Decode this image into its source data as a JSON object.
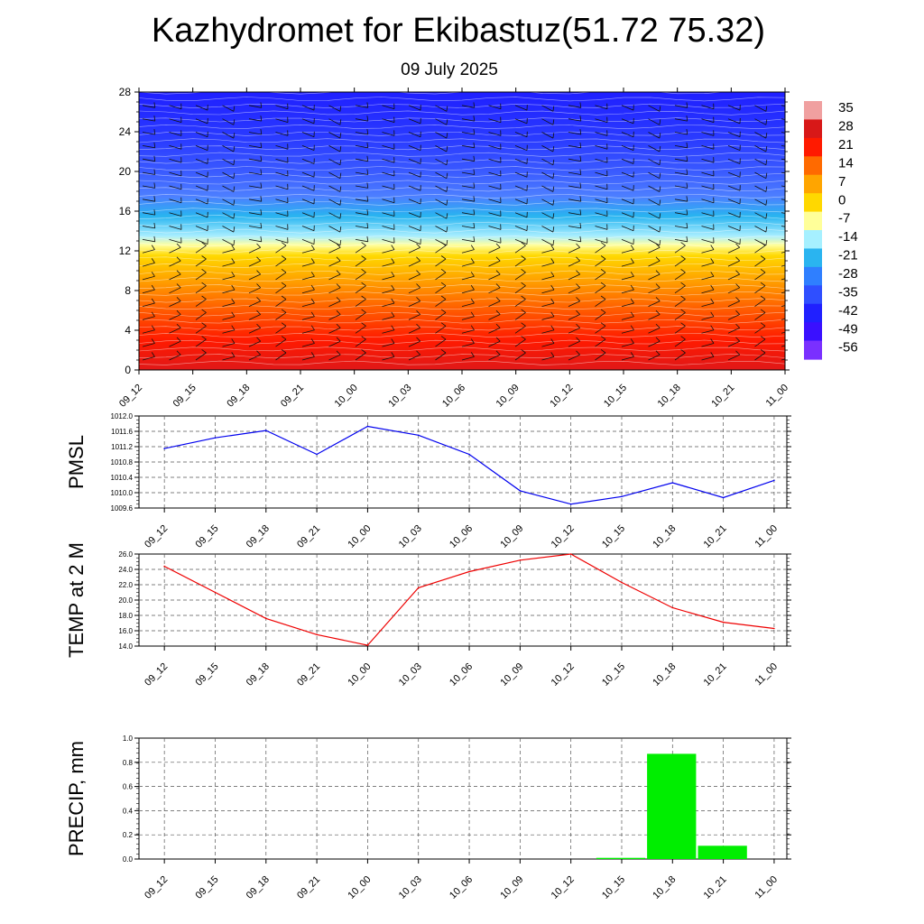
{
  "header": {
    "title": "Kazhydromet for Ekibastuz(51.72 75.32)",
    "date": "09 July 2025"
  },
  "colors": {
    "pmsl_line": "#0000ee",
    "temp_line": "#ee0000",
    "precip_bar": "#00ee00",
    "grid": "#555555"
  },
  "chart_data": [
    {
      "type": "heatmap",
      "title": "",
      "x": [
        "09_12",
        "09_15",
        "09_18",
        "09_21",
        "10_00",
        "10_03",
        "10_06",
        "10_09",
        "10_12",
        "10_15",
        "10_18",
        "10_21",
        "11_00"
      ],
      "ylim": [
        0,
        28
      ],
      "yticks": [
        "0",
        "4",
        "8",
        "12",
        "16",
        "20",
        "24",
        "28"
      ],
      "colorbar": {
        "labels": [
          "35",
          "28",
          "21",
          "14",
          "7",
          "0",
          "-7",
          "-14",
          "-21",
          "-28",
          "-35",
          "-42",
          "-49",
          "-56"
        ],
        "colors": [
          "#f0a0a0",
          "#d81818",
          "#ff1a00",
          "#ff6a00",
          "#ffa500",
          "#ffd800",
          "#ffff99",
          "#a6f0ff",
          "#2ab4f0",
          "#2f7fff",
          "#2f4fff",
          "#2020ff",
          "#3a10ff",
          "#7a30ff"
        ]
      },
      "profile": [
        {
          "h": 0,
          "color": "#e01818"
        },
        {
          "h": 3,
          "color": "#ff1a00"
        },
        {
          "h": 6,
          "color": "#ff5a00"
        },
        {
          "h": 9,
          "color": "#ffa000"
        },
        {
          "h": 11.5,
          "color": "#ffd800"
        },
        {
          "h": 12.6,
          "color": "#ffffa0"
        },
        {
          "h": 13.5,
          "color": "#a8eeff"
        },
        {
          "h": 15.5,
          "color": "#28b4f0"
        },
        {
          "h": 17.5,
          "color": "#4d7fff"
        },
        {
          "h": 20,
          "color": "#3a5aff"
        },
        {
          "h": 23,
          "color": "#2b3dff"
        },
        {
          "h": 28,
          "color": "#1f1fff"
        }
      ]
    },
    {
      "type": "line",
      "ylabel": "PMSL",
      "categories": [
        "09_12",
        "09_15",
        "09_18",
        "09_21",
        "10_00",
        "10_03",
        "10_06",
        "10_09",
        "10_12",
        "10_15",
        "10_18",
        "10_21",
        "11_00"
      ],
      "ylim": [
        1009.6,
        1012.0
      ],
      "yticks": [
        "1009.6",
        "1010.0",
        "1010.4",
        "1010.8",
        "1011.2",
        "1011.6",
        "1012.0"
      ],
      "series": [
        {
          "values": [
            1011.15,
            1011.43,
            1011.62,
            1011.0,
            1011.73,
            1011.5,
            1011.0,
            1010.05,
            1009.7,
            1009.9,
            1010.26,
            1009.87,
            1010.32
          ]
        }
      ],
      "grid": true
    },
    {
      "type": "line",
      "ylabel": "TEMP at 2 M",
      "categories": [
        "09_12",
        "09_15",
        "09_18",
        "09_21",
        "10_00",
        "10_03",
        "10_06",
        "10_09",
        "10_12",
        "10_15",
        "10_18",
        "10_21",
        "11_00"
      ],
      "ylim": [
        14.0,
        26.0
      ],
      "yticks": [
        "14.0",
        "16.0",
        "18.0",
        "20.0",
        "22.0",
        "24.0",
        "26.0"
      ],
      "series": [
        {
          "values": [
            24.4,
            21.0,
            17.6,
            15.5,
            14.1,
            21.6,
            23.7,
            25.2,
            26.0,
            22.3,
            19.0,
            17.1,
            16.3
          ]
        }
      ],
      "grid": true
    },
    {
      "type": "bar",
      "ylabel": "PRECIP, mm",
      "categories": [
        "09_12",
        "09_15",
        "09_18",
        "09_21",
        "10_00",
        "10_03",
        "10_06",
        "10_09",
        "10_12",
        "10_15",
        "10_18",
        "10_21",
        "11_00"
      ],
      "ylim": [
        0.0,
        1.0
      ],
      "yticks": [
        "0.0",
        "0.2",
        "0.4",
        "0.6",
        "0.8",
        "1.0"
      ],
      "values": [
        0,
        0,
        0,
        0,
        0,
        0,
        0,
        0,
        0,
        0.01,
        0.87,
        0.11,
        0
      ],
      "grid": true
    }
  ]
}
